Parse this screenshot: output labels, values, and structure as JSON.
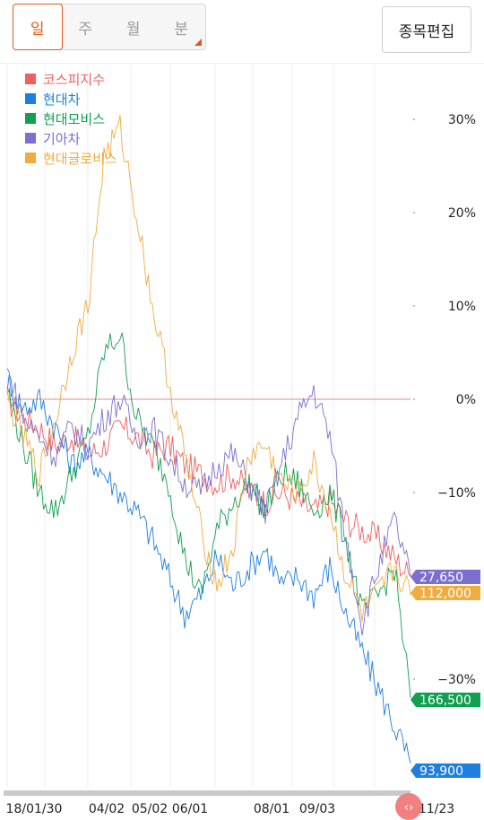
{
  "tabs": [
    {
      "label": "일",
      "active": true
    },
    {
      "label": "주",
      "active": false
    },
    {
      "label": "월",
      "active": false
    },
    {
      "label": "분",
      "active": false
    }
  ],
  "edit_button": "종목편집",
  "chart_data": {
    "type": "line",
    "y_unit": "percent change",
    "ylim": [
      -40,
      35
    ],
    "y_ticks": [
      {
        "value": 30,
        "label": "30%"
      },
      {
        "value": 20,
        "label": "20%"
      },
      {
        "value": 10,
        "label": "10%"
      },
      {
        "value": 0,
        "label": "0%"
      },
      {
        "value": -10,
        "label": "−10%"
      },
      {
        "value": -30,
        "label": "−30%"
      }
    ],
    "x_ticks": [
      "18/01/30",
      "04/02",
      "05/02",
      "06/01",
      "08/01",
      "09/03",
      "11/23"
    ],
    "grid": true,
    "baseline": 0,
    "legend_position": "top-left",
    "series": [
      {
        "name": "코스피지수",
        "color": "#f06060",
        "points": [
          [
            0,
            0
          ],
          [
            4,
            -2
          ],
          [
            8,
            -3
          ],
          [
            12,
            -5
          ],
          [
            16,
            -4
          ],
          [
            20,
            -6
          ],
          [
            24,
            -5
          ],
          [
            28,
            -3
          ],
          [
            32,
            -4
          ],
          [
            36,
            -6
          ],
          [
            40,
            -5
          ],
          [
            44,
            -7
          ],
          [
            48,
            -8
          ],
          [
            52,
            -9
          ],
          [
            56,
            -8
          ],
          [
            60,
            -10
          ],
          [
            64,
            -11
          ],
          [
            68,
            -10
          ],
          [
            72,
            -11
          ],
          [
            76,
            -12
          ],
          [
            80,
            -11
          ],
          [
            84,
            -13
          ],
          [
            88,
            -14
          ],
          [
            92,
            -15
          ],
          [
            96,
            -17
          ],
          [
            100,
            -19
          ]
        ]
      },
      {
        "name": "현대차",
        "color": "#1e7fe0",
        "points": [
          [
            0,
            2
          ],
          [
            4,
            -1
          ],
          [
            8,
            0
          ],
          [
            12,
            -3
          ],
          [
            16,
            -7
          ],
          [
            20,
            -6
          ],
          [
            24,
            -8
          ],
          [
            28,
            -10
          ],
          [
            32,
            -12
          ],
          [
            36,
            -15
          ],
          [
            40,
            -19
          ],
          [
            44,
            -23
          ],
          [
            48,
            -21
          ],
          [
            52,
            -17
          ],
          [
            56,
            -20
          ],
          [
            60,
            -18
          ],
          [
            64,
            -16
          ],
          [
            68,
            -20
          ],
          [
            72,
            -19
          ],
          [
            76,
            -21
          ],
          [
            80,
            -18
          ],
          [
            84,
            -23
          ],
          [
            88,
            -27
          ],
          [
            92,
            -31
          ],
          [
            96,
            -35
          ],
          [
            100,
            -39
          ]
        ]
      },
      {
        "name": "현대모비스",
        "color": "#10a050",
        "points": [
          [
            0,
            1
          ],
          [
            4,
            -5
          ],
          [
            8,
            -10
          ],
          [
            12,
            -12
          ],
          [
            16,
            -8
          ],
          [
            20,
            -4
          ],
          [
            24,
            5
          ],
          [
            28,
            7
          ],
          [
            32,
            -2
          ],
          [
            36,
            -5
          ],
          [
            40,
            -9
          ],
          [
            44,
            -17
          ],
          [
            48,
            -21
          ],
          [
            52,
            -14
          ],
          [
            56,
            -11
          ],
          [
            60,
            -9
          ],
          [
            64,
            -12
          ],
          [
            68,
            -8
          ],
          [
            72,
            -9
          ],
          [
            76,
            -12
          ],
          [
            80,
            -10
          ],
          [
            84,
            -15
          ],
          [
            88,
            -23
          ],
          [
            92,
            -21
          ],
          [
            96,
            -18
          ],
          [
            100,
            -32
          ]
        ]
      },
      {
        "name": "기아차",
        "color": "#7b6fd0",
        "points": [
          [
            0,
            3
          ],
          [
            4,
            -2
          ],
          [
            8,
            -4
          ],
          [
            12,
            -6
          ],
          [
            16,
            -3
          ],
          [
            20,
            -5
          ],
          [
            24,
            -2
          ],
          [
            28,
            0
          ],
          [
            32,
            -4
          ],
          [
            36,
            -3
          ],
          [
            40,
            -6
          ],
          [
            44,
            -9
          ],
          [
            48,
            -10
          ],
          [
            52,
            -7
          ],
          [
            56,
            -6
          ],
          [
            60,
            -9
          ],
          [
            64,
            -12
          ],
          [
            68,
            -7
          ],
          [
            72,
            -2
          ],
          [
            76,
            1
          ],
          [
            80,
            -4
          ],
          [
            84,
            -15
          ],
          [
            88,
            -24
          ],
          [
            92,
            -18
          ],
          [
            96,
            -13
          ],
          [
            100,
            -19
          ]
        ]
      },
      {
        "name": "현대글로비스",
        "color": "#f0ac40",
        "points": [
          [
            0,
            0
          ],
          [
            4,
            -4
          ],
          [
            8,
            -8
          ],
          [
            12,
            -2
          ],
          [
            16,
            5
          ],
          [
            20,
            10
          ],
          [
            24,
            26
          ],
          [
            28,
            29
          ],
          [
            32,
            20
          ],
          [
            36,
            10
          ],
          [
            40,
            2
          ],
          [
            44,
            -6
          ],
          [
            48,
            -14
          ],
          [
            52,
            -20
          ],
          [
            56,
            -16
          ],
          [
            60,
            -6
          ],
          [
            64,
            -5
          ],
          [
            68,
            -9
          ],
          [
            72,
            -10
          ],
          [
            76,
            -7
          ],
          [
            80,
            -12
          ],
          [
            84,
            -19
          ],
          [
            88,
            -23
          ],
          [
            92,
            -21
          ],
          [
            96,
            -18
          ],
          [
            100,
            -21
          ]
        ]
      }
    ],
    "end_labels": [
      {
        "series": "기아차",
        "label": "27,650",
        "color": "#7b6fd0"
      },
      {
        "series": "현대글로비스",
        "label": "112,000",
        "color": "#f0ac40"
      },
      {
        "series": "현대모비스",
        "label": "166,500",
        "color": "#10a050"
      },
      {
        "series": "현대차",
        "label": "93,900",
        "color": "#1e7fe0"
      }
    ],
    "scroll_icon": "code-brackets-icon"
  }
}
